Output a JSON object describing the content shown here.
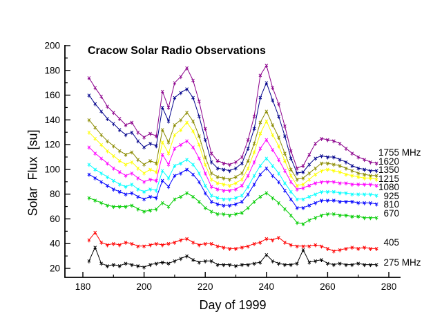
{
  "window": {
    "background": "#ffffff"
  },
  "chart_data": {
    "type": "line",
    "title": "Cracow Solar Radio Observations",
    "xlabel": "Day of 1999",
    "ylabel": "Solar  Flux  [su]",
    "xlim": [
      174,
      284
    ],
    "ylim": [
      13,
      200
    ],
    "x_ticks": [
      180,
      200,
      220,
      240,
      260,
      280
    ],
    "x_minor_ticks": [
      190,
      210,
      230,
      250,
      270
    ],
    "y_ticks": [
      20,
      40,
      60,
      80,
      100,
      120,
      140,
      160,
      180,
      200
    ],
    "y_minor_ticks": [
      30,
      50,
      70,
      90,
      110,
      130,
      150,
      170,
      190
    ],
    "grid": false,
    "legend_position": "right",
    "marker": "x-with-tail",
    "x": [
      182,
      184,
      186,
      188,
      190,
      192,
      194,
      196,
      198,
      200,
      202,
      204,
      206,
      208,
      210,
      212,
      214,
      216,
      218,
      220,
      222,
      224,
      226,
      228,
      230,
      232,
      234,
      236,
      238,
      240,
      242,
      244,
      246,
      248,
      250,
      252,
      254,
      256,
      258,
      260,
      262,
      264,
      266,
      268,
      270,
      272,
      274,
      276
    ],
    "series": [
      {
        "name": "1755 MHz",
        "color": "#8B008B",
        "values": [
          174,
          166,
          159,
          151,
          146,
          141,
          136,
          138,
          130,
          126,
          129,
          127,
          163,
          150,
          170,
          175,
          182,
          172,
          155,
          133,
          113,
          107,
          105,
          104,
          106,
          110,
          124,
          143,
          176,
          184,
          166,
          153,
          135,
          115,
          101,
          103,
          112,
          121,
          125,
          124,
          123,
          121,
          117,
          113,
          110,
          108,
          106,
          105
        ]
      },
      {
        "name": "1620",
        "color": "#00008B",
        "values": [
          160,
          153,
          147,
          141,
          137,
          132,
          128,
          130,
          123,
          118,
          121,
          119,
          150,
          139,
          158,
          162,
          165,
          158,
          143,
          124,
          106,
          101,
          100,
          99,
          101,
          105,
          117,
          133,
          158,
          170,
          156,
          143,
          127,
          109,
          97,
          98,
          104,
          109,
          111,
          110,
          110,
          108,
          106,
          103,
          101,
          100,
          99,
          99
        ]
      },
      {
        "name": "1350",
        "color": "#8B8B00",
        "values": [
          140,
          134,
          128,
          123,
          119,
          115,
          112,
          114,
          108,
          104,
          107,
          105,
          132,
          122,
          136,
          140,
          146,
          139,
          127,
          110,
          97,
          94,
          93,
          92,
          94,
          97,
          107,
          121,
          138,
          147,
          136,
          126,
          113,
          100,
          92,
          93,
          97,
          101,
          105,
          105,
          104,
          103,
          101,
          99,
          97,
          96,
          95,
          95
        ]
      },
      {
        "name": "1215",
        "color": "#FFFF00",
        "values": [
          130,
          125,
          120,
          115,
          111,
          107,
          104,
          106,
          101,
          97,
          100,
          98,
          122,
          113,
          128,
          132,
          138,
          131,
          120,
          104,
          92,
          89,
          88,
          87,
          89,
          92,
          101,
          114,
          129,
          139,
          128,
          119,
          107,
          95,
          87,
          88,
          92,
          96,
          99,
          100,
          99,
          98,
          96,
          95,
          94,
          93,
          93,
          92
        ]
      },
      {
        "name": "1080",
        "color": "#FF00FF",
        "values": [
          118,
          113,
          109,
          105,
          101,
          98,
          95,
          97,
          93,
          90,
          92,
          91,
          112,
          104,
          117,
          120,
          123,
          118,
          109,
          97,
          86,
          84,
          83,
          83,
          84,
          87,
          95,
          106,
          117,
          124,
          116,
          108,
          99,
          90,
          84,
          85,
          87,
          89,
          90,
          90,
          90,
          89,
          89,
          88,
          88,
          88,
          88,
          87
        ]
      },
      {
        "name": "925",
        "color": "#00FFFF",
        "values": [
          104,
          100,
          97,
          94,
          91,
          88,
          86,
          88,
          84,
          82,
          84,
          83,
          99,
          93,
          103,
          105,
          108,
          104,
          97,
          87,
          79,
          77,
          76,
          76,
          77,
          79,
          86,
          95,
          103,
          109,
          103,
          97,
          89,
          82,
          76,
          76,
          78,
          80,
          82,
          82,
          82,
          81,
          81,
          80,
          80,
          80,
          80,
          79
        ]
      },
      {
        "name": "810",
        "color": "#0000FF",
        "values": [
          96,
          93,
          90,
          87,
          84,
          82,
          80,
          81,
          78,
          76,
          78,
          77,
          91,
          86,
          95,
          97,
          100,
          96,
          90,
          81,
          74,
          72,
          71,
          71,
          72,
          74,
          80,
          88,
          96,
          101,
          95,
          90,
          83,
          76,
          69,
          69,
          71,
          73,
          75,
          75,
          75,
          74,
          74,
          74,
          73,
          73,
          73,
          72
        ]
      },
      {
        "name": "670",
        "color": "#00CC00",
        "values": [
          77,
          75,
          73,
          71,
          70,
          70,
          70,
          71,
          68,
          66,
          67,
          68,
          73,
          70,
          76,
          78,
          81,
          78,
          74,
          69,
          66,
          64,
          64,
          63,
          64,
          65,
          69,
          74,
          78,
          81,
          77,
          73,
          68,
          63,
          57,
          56,
          59,
          61,
          63,
          64,
          64,
          63,
          63,
          62,
          62,
          61,
          61,
          61
        ]
      },
      {
        "name": "405",
        "color": "#FF0000",
        "values": [
          43,
          49,
          41,
          39,
          40,
          39,
          41,
          40,
          38,
          38,
          39,
          40,
          39,
          40,
          41,
          43,
          44,
          41,
          39,
          40,
          40,
          38,
          37,
          36,
          36,
          37,
          38,
          40,
          41,
          44,
          43,
          45,
          41,
          39,
          38,
          38,
          38,
          39,
          38,
          36,
          34,
          35,
          36,
          37,
          36,
          37,
          36,
          36
        ]
      },
      {
        "name": "275 MHz",
        "color": "#000000",
        "values": [
          26,
          37,
          24,
          22,
          23,
          22,
          24,
          23,
          22,
          21,
          23,
          24,
          25,
          24,
          26,
          28,
          30,
          27,
          25,
          26,
          26,
          23,
          23,
          23,
          22,
          23,
          23,
          24,
          25,
          31,
          26,
          24,
          23,
          23,
          24,
          35,
          25,
          26,
          27,
          24,
          23,
          24,
          23,
          23,
          24,
          23,
          23,
          23
        ]
      }
    ]
  }
}
